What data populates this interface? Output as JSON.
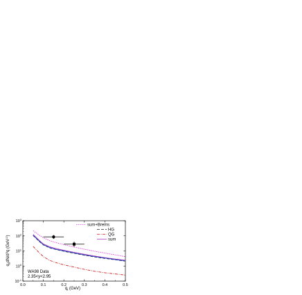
{
  "chart_data": {
    "type": "line",
    "title": "",
    "xlabel": "q",
    "xlabel_sub": "t",
    "xlabel_unit": " (GeV)",
    "ylabel": "q",
    "ylabel_sub": "0",
    "ylabel_rest": "dN/d",
    "ylabel_sup": "3",
    "ylabel_rest2": "q (GeV",
    "ylabel_sup2": "-2",
    "ylabel_end": ")",
    "xlim": [
      0.0,
      0.5
    ],
    "ylim_log10": [
      -1,
      3
    ],
    "yscale": "log",
    "x_ticks": [
      "0.0",
      "0.1",
      "0.2",
      "0.3",
      "0.4",
      "0.5"
    ],
    "y_ticks": [
      {
        "base": "10",
        "exp": "-1",
        "value": -1
      },
      {
        "base": "10",
        "exp": "0",
        "value": 0
      },
      {
        "base": "10",
        "exp": "1",
        "value": 1
      },
      {
        "base": "10",
        "exp": "2",
        "value": 2
      },
      {
        "base": "10",
        "exp": "3",
        "value": 3
      }
    ],
    "legend_position": "top-right",
    "series": [
      {
        "name": "sum+Brems",
        "color": "#e040e0",
        "dash": "1.5,1.2",
        "x": [
          0.05,
          0.08,
          0.1,
          0.13,
          0.16,
          0.2,
          0.25,
          0.3,
          0.35,
          0.4,
          0.45,
          0.5
        ],
        "y": [
          220,
          110,
          75,
          48,
          36,
          26,
          18,
          13,
          9.5,
          7.2,
          5.5,
          4.2
        ]
      },
      {
        "name": "HG",
        "color": "#202020",
        "dash": "4,2",
        "x": [
          0.05,
          0.08,
          0.1,
          0.13,
          0.16,
          0.2,
          0.25,
          0.3,
          0.35,
          0.4,
          0.45,
          0.5
        ],
        "y": [
          105,
          42,
          25,
          16,
          12.5,
          9.5,
          7.0,
          5.2,
          4.0,
          3.2,
          2.6,
          2.1
        ]
      },
      {
        "name": "QG",
        "color": "#d02020",
        "dash": "4,1.5,1,1.5",
        "x": [
          0.05,
          0.08,
          0.1,
          0.13,
          0.16,
          0.2,
          0.25,
          0.3,
          0.35,
          0.4,
          0.45,
          0.5
        ],
        "y": [
          20,
          7.5,
          4.2,
          2.4,
          1.7,
          1.2,
          0.85,
          0.6,
          0.45,
          0.36,
          0.3,
          0.25
        ]
      },
      {
        "name": "sum",
        "color": "#b040c0",
        "dash": "",
        "x": [
          0.05,
          0.08,
          0.1,
          0.13,
          0.16,
          0.2,
          0.25,
          0.3,
          0.35,
          0.4,
          0.45,
          0.5
        ],
        "y": [
          125,
          50,
          29,
          19,
          14.5,
          11,
          8.0,
          6.0,
          4.6,
          3.6,
          2.9,
          2.4
        ]
      },
      {
        "name": "",
        "color": "#2040c0",
        "dash": "",
        "x": [
          0.05,
          0.08,
          0.1,
          0.13,
          0.16,
          0.2,
          0.25,
          0.3,
          0.35,
          0.4,
          0.45,
          0.5
        ],
        "y": [
          110,
          45,
          26,
          17,
          13,
          10,
          7.4,
          5.5,
          4.2,
          3.4,
          2.7,
          2.2
        ]
      }
    ],
    "data_points": [
      {
        "x": 0.15,
        "y": 85,
        "xerr": 0.05,
        "yerr_low": 22,
        "yerr_high": 28,
        "marker": "circle"
      },
      {
        "x": 0.25,
        "y": 28,
        "xerr": 0.05,
        "yerr_low": 10,
        "yerr_high": 14,
        "marker": "square"
      }
    ],
    "annotations": [
      "WA98 Data",
      "2.35<y<2.95"
    ]
  }
}
